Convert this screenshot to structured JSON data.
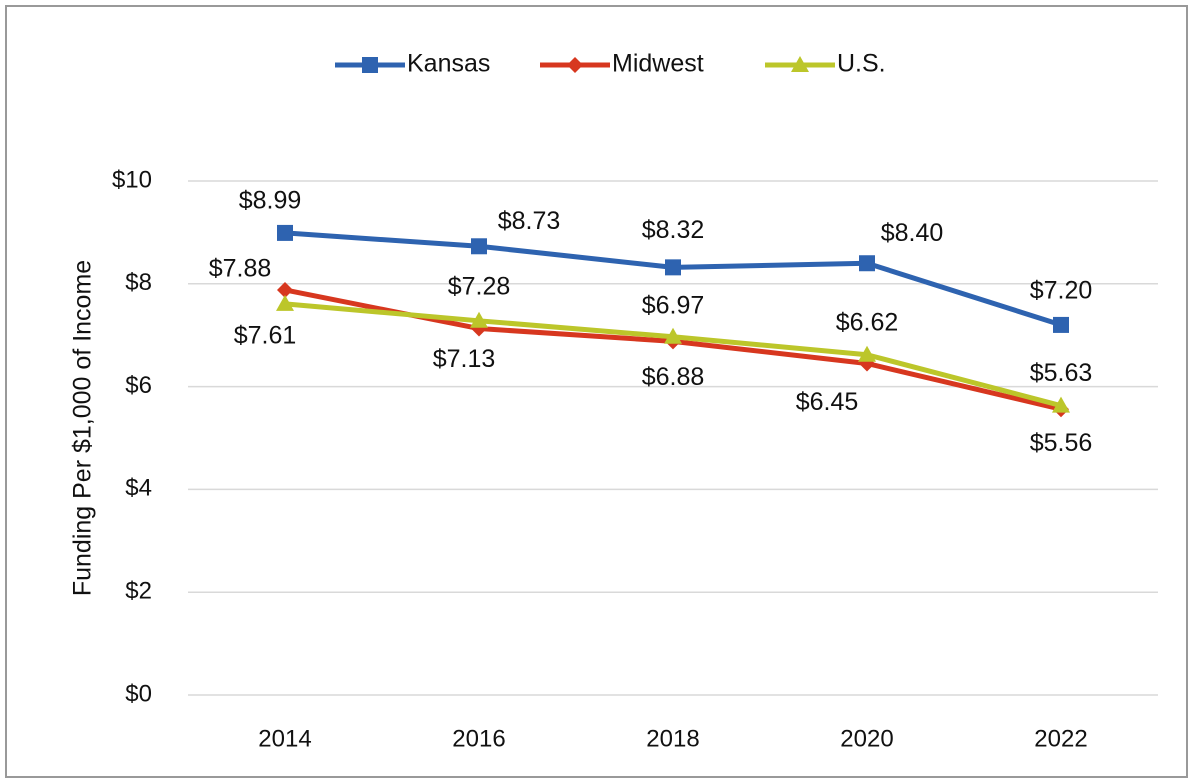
{
  "chart_data": {
    "type": "line",
    "y_label": "Funding Per $1,000 of Income",
    "categories": [
      "2014",
      "2016",
      "2018",
      "2020",
      "2022"
    ],
    "series": [
      {
        "name": "Kansas",
        "color": "#2e63b0",
        "marker": "square",
        "values": [
          8.99,
          8.73,
          8.32,
          8.4,
          7.2
        ],
        "value_labels": [
          "$8.99",
          "$8.73",
          "$8.32",
          "$8.40",
          "$7.20"
        ]
      },
      {
        "name": "Midwest",
        "color": "#d7371f",
        "marker": "diamond",
        "values": [
          7.88,
          7.13,
          6.88,
          6.45,
          5.56
        ],
        "value_labels": [
          "$7.88",
          "$7.13",
          "$6.88",
          "$6.45",
          "$5.56"
        ]
      },
      {
        "name": "U.S.",
        "color": "#bcc62a",
        "marker": "triangle",
        "values": [
          7.61,
          7.28,
          6.97,
          6.62,
          5.63
        ],
        "value_labels": [
          "$7.61",
          "$7.28",
          "$6.97",
          "$6.62",
          "$5.63"
        ]
      }
    ],
    "ylim": [
      0,
      10
    ],
    "yticks": [
      {
        "value": 0,
        "label": "$0"
      },
      {
        "value": 2,
        "label": "$2"
      },
      {
        "value": 4,
        "label": "$4"
      },
      {
        "value": 6,
        "label": "$6"
      },
      {
        "value": 8,
        "label": "$8"
      },
      {
        "value": 10,
        "label": "$10"
      }
    ],
    "grid": true,
    "legend": "top"
  }
}
